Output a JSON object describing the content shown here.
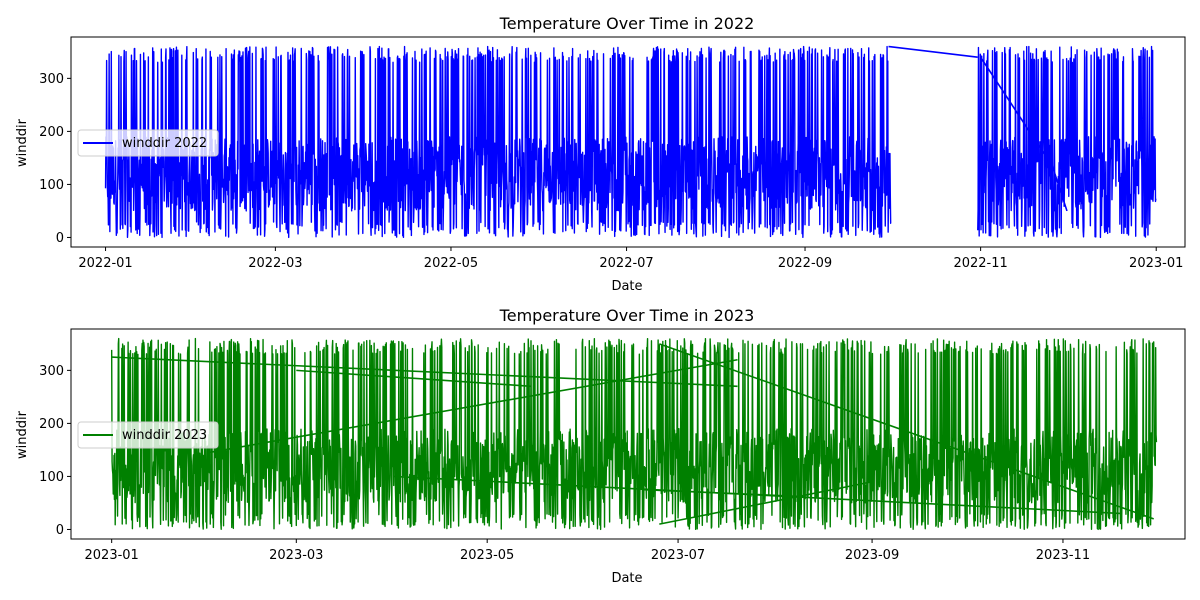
{
  "chart_data": [
    {
      "type": "line",
      "title": "Temperature Over Time in 2022",
      "xlabel": "Date",
      "ylabel": "winddir",
      "x_ticks": [
        "2022-01",
        "2022-03",
        "2022-05",
        "2022-07",
        "2022-09",
        "2022-11",
        "2023-01"
      ],
      "y_ticks": [
        0,
        100,
        200,
        300
      ],
      "xlim": [
        "2021-12-20",
        "2023-01-11"
      ],
      "ylim": [
        -18,
        378
      ],
      "grid": false,
      "legend_position": "center-left",
      "series": [
        {
          "name": "winddir 2022",
          "color": "#0000ff",
          "data_range": [
            "2022-01-01",
            "2022-12-31"
          ],
          "value_range": [
            0,
            360
          ],
          "gap": [
            "2022-10-01",
            "2022-10-31"
          ],
          "connector_lines": [
            {
              "from": [
                "2022-09-30",
                360
              ],
              "to": [
                "2022-10-31",
                340
              ]
            },
            {
              "from": [
                "2022-11-01",
                340
              ],
              "to": [
                "2022-11-24",
                150
              ]
            },
            {
              "from": [
                "2022-11-25",
                150
              ],
              "to": [
                "2022-12-01",
                50
              ]
            }
          ]
        }
      ]
    },
    {
      "type": "line",
      "title": "Temperature Over Time in 2023",
      "xlabel": "Date",
      "ylabel": "winddir",
      "x_ticks": [
        "2023-01",
        "2023-03",
        "2023-05",
        "2023-07",
        "2023-09",
        "2023-11"
      ],
      "y_ticks": [
        0,
        100,
        200,
        300
      ],
      "xlim": [
        "2022-12-19",
        "2023-12-10"
      ],
      "ylim": [
        -18,
        378
      ],
      "grid": false,
      "legend_position": "center-left",
      "series": [
        {
          "name": "winddir 2023",
          "color": "#008000",
          "data_range": [
            "2023-01-01",
            "2023-11-30"
          ],
          "value_range": [
            0,
            360
          ],
          "connector_lines": [
            {
              "from": [
                "2023-01-01",
                325
              ],
              "to": [
                "2023-07-20",
                270
              ]
            },
            {
              "from": [
                "2023-02-01",
                145
              ],
              "to": [
                "2023-07-20",
                320
              ]
            },
            {
              "from": [
                "2023-06-25",
                350
              ],
              "to": [
                "2023-11-30",
                20
              ]
            },
            {
              "from": [
                "2023-06-25",
                10
              ],
              "to": [
                "2023-09-01",
                90
              ]
            },
            {
              "from": [
                "2023-04-01",
                100
              ],
              "to": [
                "2023-11-20",
                30
              ]
            },
            {
              "from": [
                "2023-03-01",
                300
              ],
              "to": [
                "2023-05-15",
                270
              ]
            },
            {
              "from": [
                "2023-06-20",
                75
              ],
              "to": [
                "2023-08-10",
                62
              ]
            }
          ]
        }
      ]
    }
  ]
}
